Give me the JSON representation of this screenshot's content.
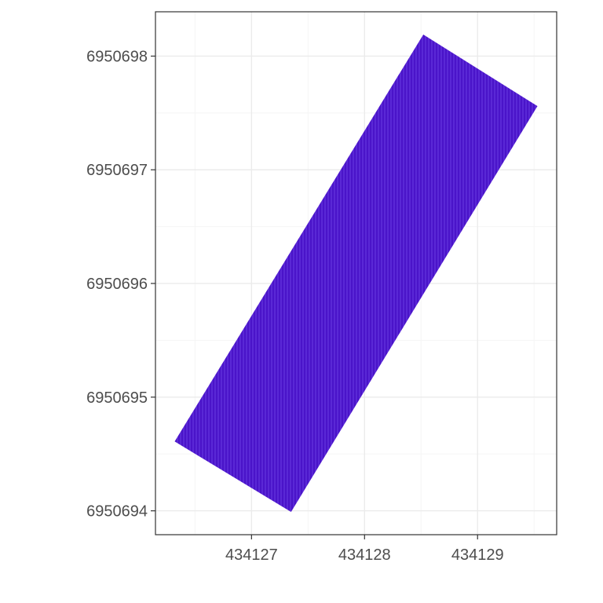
{
  "chart_data": {
    "type": "area",
    "title": "",
    "xlabel": "",
    "ylabel": "",
    "xlim": [
      434126.15,
      434129.7
    ],
    "ylim": [
      6950693.79,
      6950698.39
    ],
    "x_ticks": [
      434127,
      434128,
      434129
    ],
    "x_tick_labels": [
      "434127",
      "434128",
      "434129"
    ],
    "y_ticks": [
      6950694,
      6950695,
      6950696,
      6950697,
      6950698
    ],
    "y_tick_labels": [
      "6950694",
      "6950695",
      "6950696",
      "6950697",
      "6950698"
    ],
    "x_minor": [
      434126.5,
      434127.5,
      434128.5,
      434129.5
    ],
    "y_minor": [
      6950694.5,
      6950695.5,
      6950696.5,
      6950697.5
    ],
    "grid": true,
    "series": [
      {
        "type": "polygon",
        "points": [
          [
            434126.32,
            6950694.61
          ],
          [
            434127.35,
            6950693.99
          ],
          [
            434129.53,
            6950697.56
          ],
          [
            434128.52,
            6950698.19
          ]
        ]
      }
    ],
    "colors": {
      "fill": "#4a14c9",
      "hatch": "#6f3fe6",
      "panel_border": "#333333",
      "grid_major": "#ebebeb",
      "grid_minor": "#f5f5f5",
      "tick": "#333333",
      "tick_label": "#4d4d4d"
    }
  }
}
